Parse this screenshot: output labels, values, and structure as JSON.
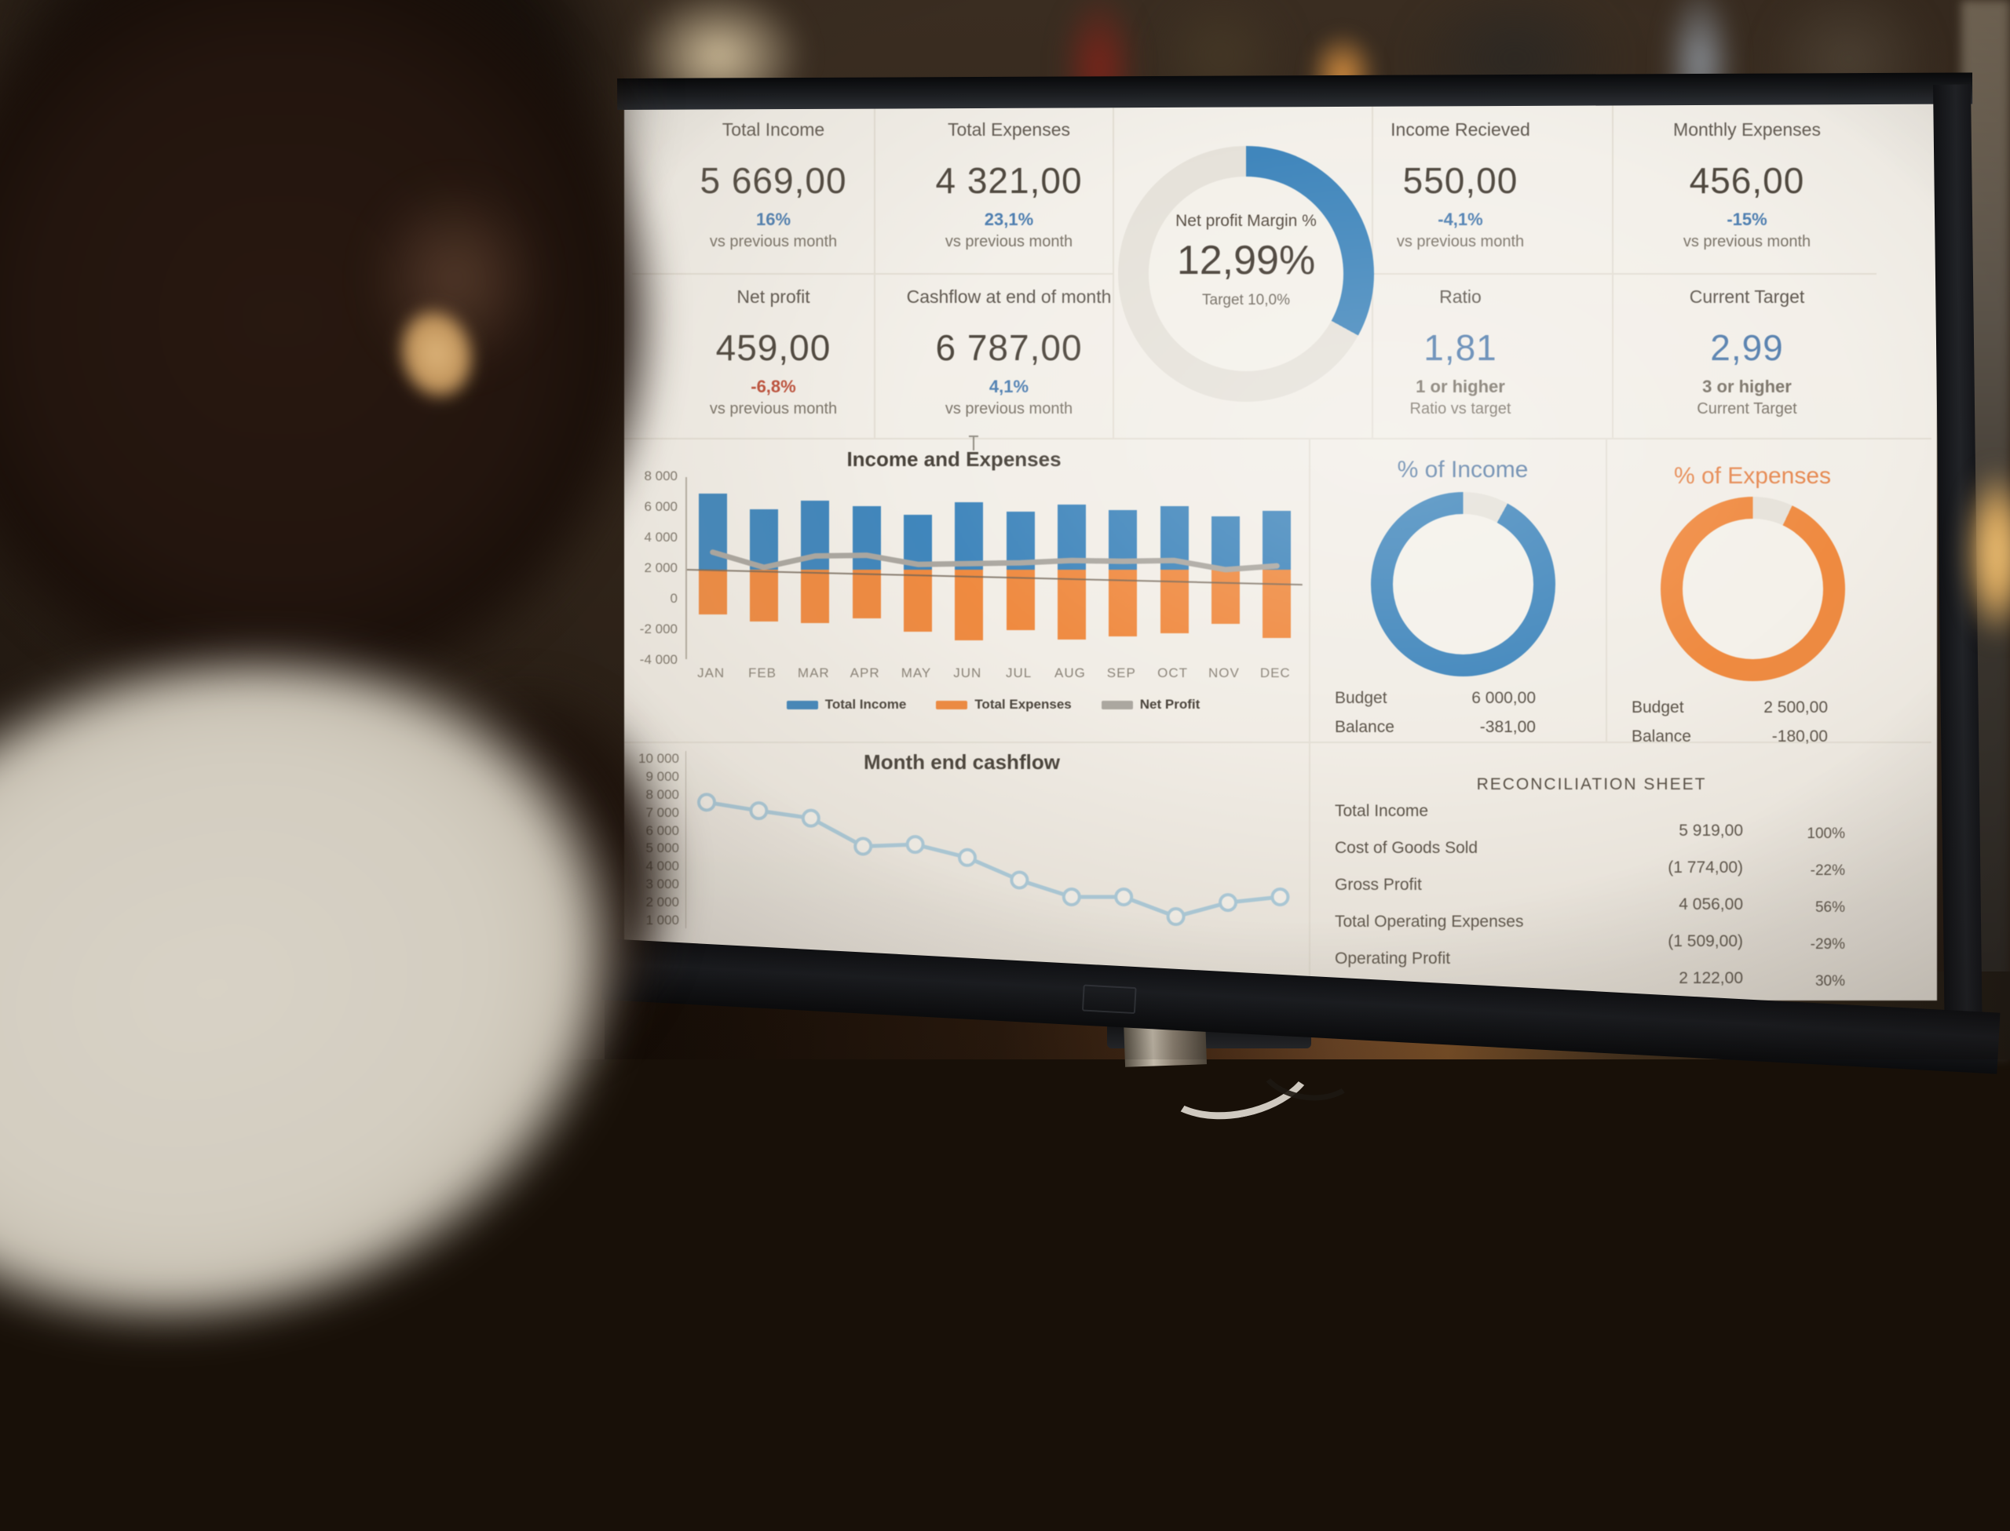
{
  "colors": {
    "blue": "#3E86BE",
    "orange": "#F28A3D",
    "gray_line": "#ABA7A0",
    "blue_text": "#4D7FB3",
    "red_text": "#C0503A",
    "income_title": "#5B7FA8",
    "expenses_title": "#E8884E",
    "ring_track": "#E6E2DA",
    "screen_bg": "#F2EEE7"
  },
  "kpis": [
    {
      "label": "Total Income",
      "value": "5 669,00",
      "value_color": "dark",
      "note1": "16%",
      "note1_color": "blue",
      "note2": "vs previous month"
    },
    {
      "label": "Total Expenses",
      "value": "4 321,00",
      "value_color": "dark",
      "note1": "23,1%",
      "note1_color": "blue",
      "note2": "vs previous month"
    },
    {
      "label": "Income Recieved",
      "value": "550,00",
      "value_color": "dark",
      "note1": "-4,1%",
      "note1_color": "blue",
      "note2": "vs previous month"
    },
    {
      "label": "Monthly Expenses",
      "value": "456,00",
      "value_color": "dark",
      "note1": "-15%",
      "note1_color": "blue",
      "note2": "vs previous month"
    },
    {
      "label": "Net profit",
      "value": "459,00",
      "value_color": "dark",
      "note1": "-6,8%",
      "note1_color": "red",
      "note2": "vs previous month"
    },
    {
      "label": "Cashflow at end of month",
      "value": "6 787,00",
      "value_color": "dark",
      "note1": "4,1%",
      "note1_color": "blue",
      "note2": "vs previous month"
    },
    {
      "label": "Ratio",
      "value": "1,81",
      "value_color": "blue",
      "note1": "1 or higher",
      "note1_color": "gray",
      "note2": "Ratio vs target"
    },
    {
      "label": "Current Target",
      "value": "2,99",
      "value_color": "blue",
      "note1": "3 or higher",
      "note1_color": "gray",
      "note2": "Current Target"
    }
  ],
  "chart_data": [
    {
      "type": "donut",
      "name": "net-profit-margin-gauge",
      "title": "Net profit Margin %",
      "value": "12,99%",
      "target_label": "Target 10,0%",
      "fill_pct": 33,
      "fill_mode": "fill",
      "color": "#3E86BE",
      "track_color": "#E6E2DA"
    },
    {
      "type": "bar+line",
      "title": "Income and Expenses",
      "categories": [
        "JAN",
        "FEB",
        "MAR",
        "APR",
        "MAY",
        "JUN",
        "JUL",
        "AUG",
        "SEP",
        "OCT",
        "NOV",
        "DEC"
      ],
      "series": [
        {
          "name": "Total Income",
          "type": "bar",
          "color": "#3E86BE",
          "values": [
            6900,
            5900,
            6450,
            6100,
            5500,
            6350,
            5750,
            6200,
            5850,
            6100,
            5400,
            5800
          ]
        },
        {
          "name": "Total Expenses",
          "type": "bar",
          "color": "#F28A3D",
          "values": [
            -1050,
            -1500,
            -1600,
            -1300,
            -2200,
            -2750,
            -2100,
            -2700,
            -2500,
            -2300,
            -1650,
            -2600
          ]
        },
        {
          "name": "Net Profit",
          "type": "line",
          "color": "#ABA7A0",
          "values": [
            3050,
            2050,
            2800,
            2850,
            2250,
            2300,
            2350,
            2500,
            2450,
            2500,
            1900,
            2150
          ]
        }
      ],
      "bars_baseline": 1900,
      "ylim": [
        -4000,
        8000
      ],
      "ytick_labels": [
        "8 000",
        "6 000",
        "4 000",
        "2 000",
        "0",
        "-2 000",
        "-4 000"
      ],
      "ytick_values": [
        8000,
        6000,
        4000,
        2000,
        0,
        -2000,
        -4000
      ],
      "grid": false,
      "legend_position": "bottom"
    },
    {
      "type": "donut",
      "name": "pct-of-income",
      "title": "% of Income",
      "title_color": "#5B7FA8",
      "color": "#3E86BE",
      "track_color": "#E6E2DA",
      "fill_pct": 92,
      "fill_mode": "gap",
      "rows": [
        {
          "label": "Budget",
          "value": "6 000,00"
        },
        {
          "label": "Balance",
          "value": "-381,00"
        }
      ]
    },
    {
      "type": "donut",
      "name": "pct-of-expenses",
      "title": "% of Expenses",
      "title_color": "#E8884E",
      "color": "#F28A3D",
      "track_color": "#E6E2DA",
      "fill_pct": 93,
      "fill_mode": "gap",
      "rows": [
        {
          "label": "Budget",
          "value": "2 500,00"
        },
        {
          "label": "Balance",
          "value": "-180,00"
        }
      ]
    },
    {
      "type": "line",
      "title": "Month end cashflow",
      "values": [
        7600,
        7150,
        6750,
        5250,
        5350,
        4650,
        3450,
        2550,
        2550,
        1500,
        2250,
        2550
      ],
      "ylim": [
        1000,
        10000
      ],
      "ytick_labels": [
        "10 000",
        "9 000",
        "8 000",
        "7 000",
        "6 000",
        "5 000",
        "4 000",
        "3 000",
        "2 000",
        "1 000"
      ],
      "ytick_values": [
        10000,
        9000,
        8000,
        7000,
        6000,
        5000,
        4000,
        3000,
        2000,
        1000
      ],
      "color": "#A9CBDD",
      "marker": "circle",
      "grid": false
    },
    {
      "type": "table",
      "title": "RECONCILIATION SHEET",
      "rows": [
        {
          "label": "Total Income",
          "value": "5 919,00",
          "pct": "100%"
        },
        {
          "label": "Cost of Goods Sold",
          "value": "(1 774,00)",
          "pct": "-22%"
        },
        {
          "label": "Gross Profit",
          "value": "4 056,00",
          "pct": "56%"
        },
        {
          "label": "Total Operating Expenses",
          "value": "(1 509,00)",
          "pct": "-29%"
        },
        {
          "label": "Operating Profit",
          "value": "2 122,00",
          "pct": "30%"
        }
      ]
    }
  ]
}
